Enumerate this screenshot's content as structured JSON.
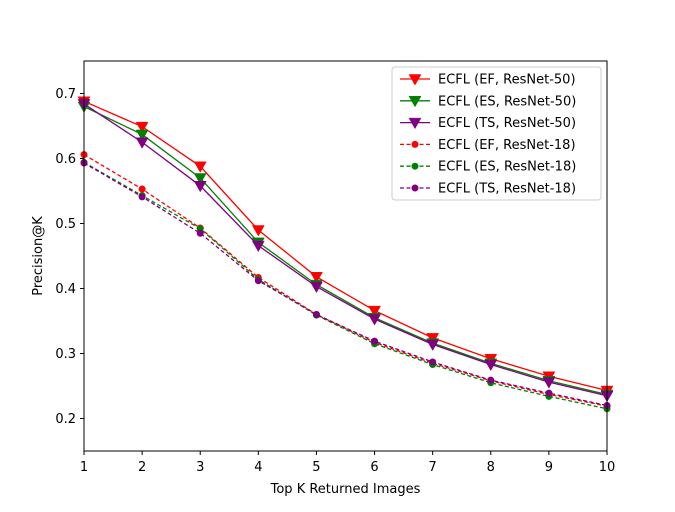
{
  "chart_data": {
    "type": "line",
    "title": "",
    "xlabel": "Top K Returned Images",
    "ylabel": "Precision@K",
    "xlim": [
      1,
      10
    ],
    "ylim": [
      0.15,
      0.75
    ],
    "x": [
      1,
      2,
      3,
      4,
      5,
      6,
      7,
      8,
      9,
      10
    ],
    "xticks": [
      "1",
      "2",
      "3",
      "4",
      "5",
      "6",
      "7",
      "8",
      "9",
      "10"
    ],
    "yticks": [
      0.2,
      0.3,
      0.4,
      0.5,
      0.6,
      0.7
    ],
    "ytick_labels": [
      "0.2",
      "0.3",
      "0.4",
      "0.5",
      "0.6",
      "0.7"
    ],
    "grid": false,
    "legend_position": "top-right",
    "series": [
      {
        "name": "ECFL (EF, ResNet-50)",
        "color": "#ff0000",
        "style": "solid",
        "marker": "triangle-down",
        "values": [
          0.688,
          0.649,
          0.588,
          0.49,
          0.418,
          0.366,
          0.324,
          0.292,
          0.265,
          0.243
        ]
      },
      {
        "name": "ECFL (ES, ResNet-50)",
        "color": "#008000",
        "style": "solid",
        "marker": "triangle-down",
        "values": [
          0.68,
          0.637,
          0.57,
          0.471,
          0.406,
          0.355,
          0.316,
          0.285,
          0.258,
          0.237
        ]
      },
      {
        "name": "ECFL (TS, ResNet-50)",
        "color": "#800080",
        "style": "solid",
        "marker": "triangle-down",
        "values": [
          0.684,
          0.625,
          0.558,
          0.466,
          0.403,
          0.353,
          0.314,
          0.283,
          0.256,
          0.235
        ]
      },
      {
        "name": "ECFL (EF, ResNet-18)",
        "color": "#ff0000",
        "style": "dashed",
        "marker": "circle",
        "values": [
          0.606,
          0.553,
          0.493,
          0.417,
          0.36,
          0.317,
          0.285,
          0.258,
          0.237,
          0.219
        ]
      },
      {
        "name": "ECFL (ES, ResNet-18)",
        "color": "#008000",
        "style": "dashed",
        "marker": "circle",
        "values": [
          0.594,
          0.543,
          0.492,
          0.414,
          0.359,
          0.315,
          0.283,
          0.255,
          0.234,
          0.215
        ]
      },
      {
        "name": "ECFL (TS, ResNet-18)",
        "color": "#800080",
        "style": "dashed",
        "marker": "circle",
        "values": [
          0.593,
          0.541,
          0.485,
          0.412,
          0.36,
          0.319,
          0.287,
          0.259,
          0.239,
          0.22
        ]
      }
    ]
  }
}
